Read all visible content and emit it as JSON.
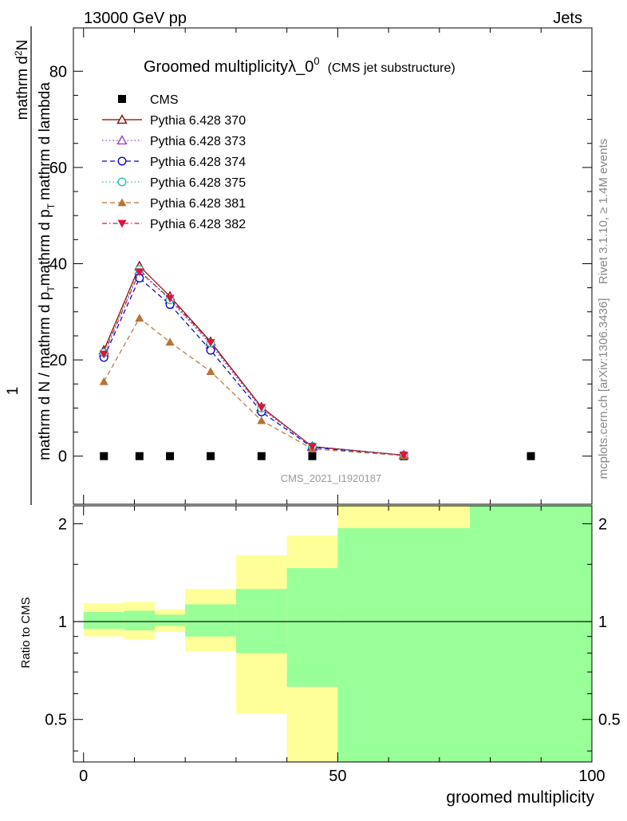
{
  "header": {
    "left": "13000 GeV pp",
    "right": "Jets"
  },
  "side_labels": {
    "rivet": "Rivet 3.1.10, ≥ 1.4M events",
    "mcplots": "mcplots.cern.ch [arXiv:1306.3436]"
  },
  "chart_data": [
    {
      "type": "line",
      "title": "Groomed multiplicityλ_0",
      "title_sup": "0",
      "subtitle": "(CMS jet substructure)",
      "ylabel_numerator": "1",
      "ylabel_denominator_pre": "mathrm d N / mathrm d p",
      "ylabel_denominator_sub": "T",
      "ylabel_denominator_post": "mathrm d p",
      "ylabel_denominator_sub2": "T",
      "ylabel_denominator_post2": "mathrm d lambda",
      "ylabel_numerator_full": "mathrm d",
      "ylabel_numerator_sup": "2",
      "ylabel_numerator_N": "N",
      "reference": "CMS_2021_I1920187",
      "xlim": [
        -2,
        100
      ],
      "ylim": [
        -10,
        89
      ],
      "yticks": [
        0,
        20,
        40,
        60,
        80
      ],
      "legend_position": "top-left",
      "series": [
        {
          "name": "CMS",
          "color": "#000000",
          "marker": "square",
          "line": "none",
          "x": [
            4,
            11,
            17,
            25,
            35,
            45,
            63,
            88
          ],
          "y": [
            0,
            0,
            0,
            0,
            0,
            0,
            0,
            0
          ]
        },
        {
          "name": "Pythia 6.428 370",
          "color": "#8b0000",
          "marker": "triangle-open",
          "line": "solid",
          "x": [
            4,
            11,
            17,
            25,
            35,
            45,
            63
          ],
          "y": [
            22,
            39.5,
            33.2,
            23.8,
            10.2,
            2.0,
            0.2
          ]
        },
        {
          "name": "Pythia 6.428 373",
          "color": "#9932cc",
          "marker": "triangle-open",
          "line": "dotted",
          "x": [
            4,
            11,
            17,
            25,
            35,
            45,
            63
          ],
          "y": [
            21.5,
            38.5,
            32.5,
            23.2,
            9.8,
            1.9,
            0.2
          ]
        },
        {
          "name": "Pythia 6.428 374",
          "color": "#0000cd",
          "marker": "circle-open",
          "line": "dashed",
          "x": [
            4,
            11,
            17,
            25,
            35,
            45,
            63
          ],
          "y": [
            20.5,
            37,
            31.5,
            22,
            9.2,
            1.8,
            0.2
          ]
        },
        {
          "name": "Pythia 6.428 375",
          "color": "#20c0b0",
          "marker": "circle-open",
          "line": "dotted",
          "x": [
            4,
            11,
            17,
            25,
            35,
            45,
            63
          ],
          "y": [
            21.5,
            38.8,
            32.5,
            23.5,
            10,
            2.0,
            0.2
          ]
        },
        {
          "name": "Pythia 6.428 381",
          "color": "#b87333",
          "marker": "triangle-filled",
          "line": "dashed",
          "x": [
            4,
            11,
            17,
            25,
            35,
            45,
            63
          ],
          "y": [
            15.5,
            28.7,
            23.7,
            17.6,
            7.4,
            1.5,
            0.1
          ]
        },
        {
          "name": "Pythia 6.428 382",
          "color": "#dc143c",
          "marker": "triangle-down-filled",
          "line": "dashdot",
          "x": [
            4,
            11,
            17,
            25,
            35,
            45,
            63
          ],
          "y": [
            21.2,
            38.3,
            32.8,
            23.6,
            10.1,
            2.0,
            0.2
          ]
        }
      ]
    },
    {
      "type": "area",
      "ylabel": "Ratio to CMS",
      "xlabel": "groomed multiplicity",
      "xlim": [
        -2,
        100
      ],
      "ylim": [
        0.37,
        2.27
      ],
      "yticks": [
        0.5,
        1,
        2
      ],
      "ytick_labels": [
        "0.5",
        "1",
        "2"
      ],
      "xticks": [
        0,
        50,
        100
      ],
      "xtick_labels": [
        "0",
        "50",
        "100"
      ],
      "reference_line": 1,
      "bands": {
        "edges": [
          0,
          8,
          14,
          20,
          30,
          40,
          50,
          76,
          100
        ],
        "yellow_low": [
          0.9,
          0.88,
          0.93,
          0.81,
          0.52,
          0.3,
          0.3,
          0.3
        ],
        "yellow_high": [
          1.14,
          1.15,
          1.09,
          1.26,
          1.6,
          1.84,
          3.0,
          1.94
        ],
        "green_low": [
          0.95,
          0.94,
          0.97,
          0.9,
          0.8,
          0.63,
          0.3,
          0.3
        ],
        "green_high": [
          1.07,
          1.08,
          1.05,
          1.13,
          1.26,
          1.46,
          1.94,
          3.0
        ],
        "colors": {
          "yellow": "#ffff99",
          "green": "#99ff99"
        }
      }
    }
  ]
}
